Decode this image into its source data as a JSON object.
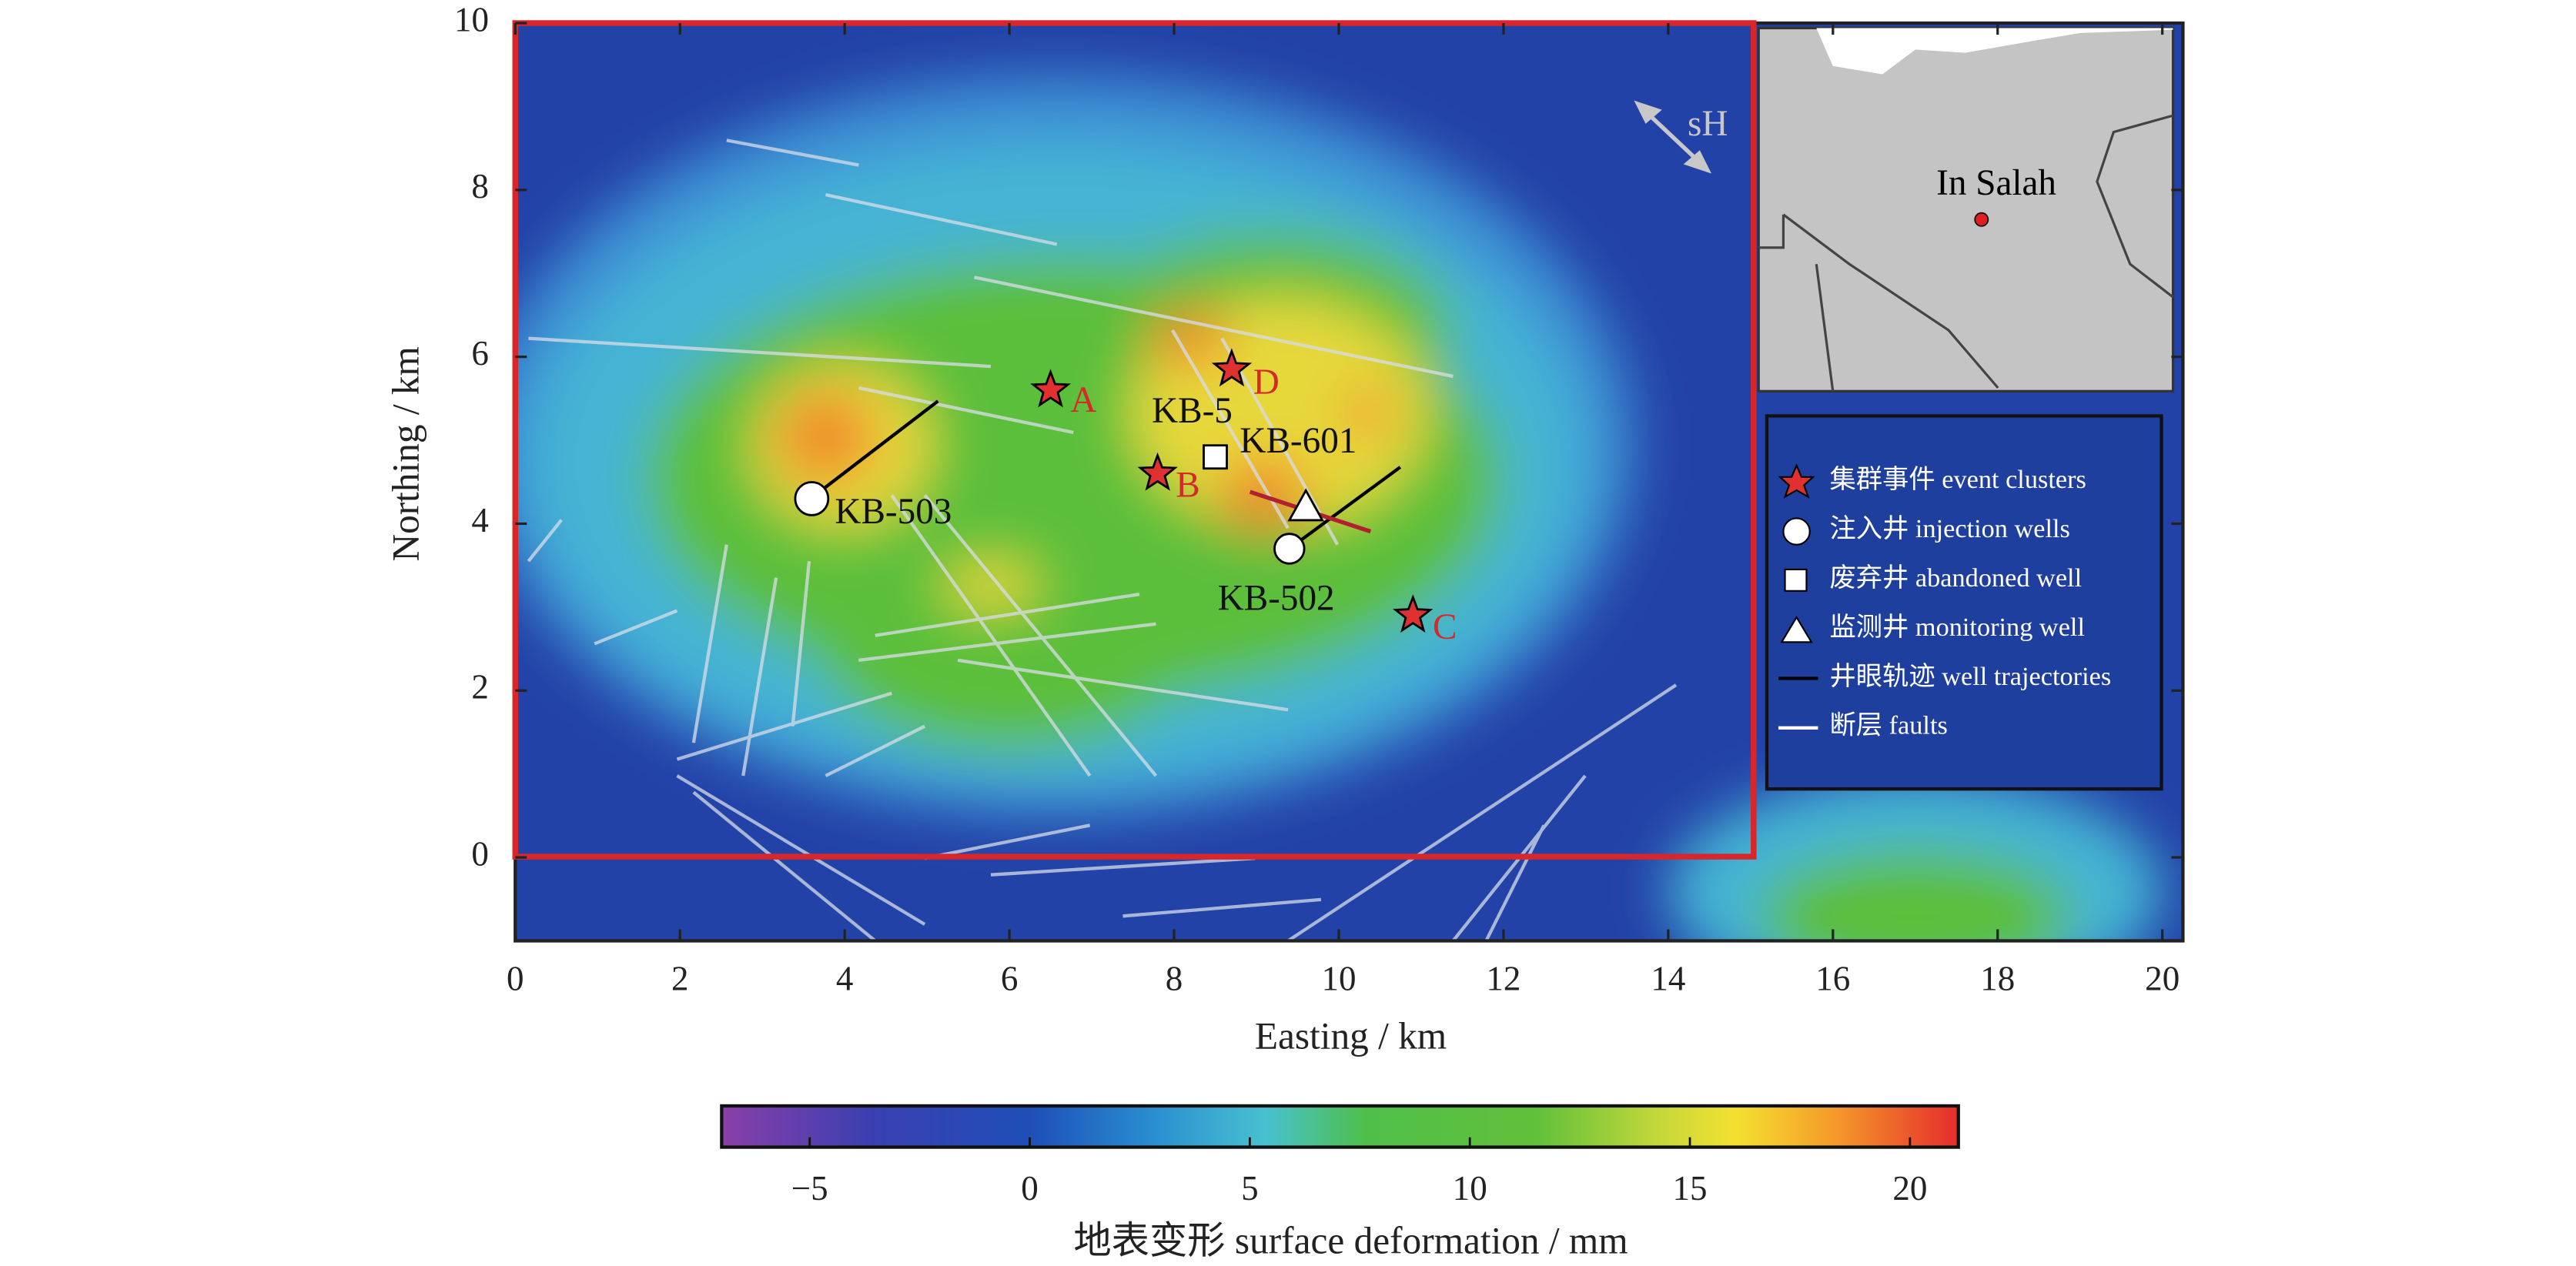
{
  "axes": {
    "xlabel": "Easting / km",
    "ylabel": "Northing / km",
    "xlim": [
      0,
      20.25
    ],
    "ylim": [
      -1,
      10
    ],
    "xticks": [
      0,
      2,
      4,
      6,
      8,
      10,
      12,
      14,
      16,
      18,
      20
    ],
    "yticks": [
      0,
      2,
      4,
      6,
      8,
      10
    ]
  },
  "event_clusters": [
    {
      "label": "A",
      "x": 6.5,
      "y": 5.6
    },
    {
      "label": "B",
      "x": 7.8,
      "y": 4.6
    },
    {
      "label": "C",
      "x": 10.9,
      "y": 2.9
    },
    {
      "label": "D",
      "x": 8.7,
      "y": 5.85
    }
  ],
  "injection_wells": [
    {
      "label": "KB-503",
      "x": 3.6,
      "y": 4.3
    },
    {
      "label": "KB-502",
      "x": 9.4,
      "y": 3.7
    }
  ],
  "abandoned_well": {
    "label": "KB-5",
    "x": 8.5,
    "y": 4.8
  },
  "monitoring_well": {
    "label": "KB-601",
    "x": 9.6,
    "y": 4.2
  },
  "stress_label": "sH",
  "inset": {
    "label": "In Salah"
  },
  "legend": [
    "集群事件 event clusters",
    "注入井 injection wells",
    "废弃井 abandoned well",
    "监测井 monitoring well",
    "井眼轨迹 well trajectories",
    "断层 faults"
  ],
  "colorbar": {
    "label": "地表变形 surface deformation / mm",
    "lim": [
      -7,
      21.1
    ],
    "ticks": [
      {
        "value": -5,
        "label": "−5"
      },
      0,
      5,
      10,
      15,
      20
    ]
  }
}
